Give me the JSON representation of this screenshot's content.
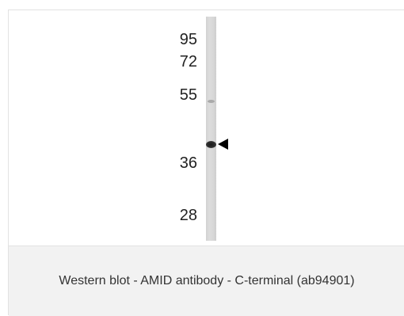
{
  "figure": {
    "marker_labels": [
      "95",
      "72",
      "55",
      "36",
      "28"
    ],
    "band_indicator": "arrowhead",
    "caption": "Western blot - AMID antibody - C-terminal (ab94901)"
  }
}
